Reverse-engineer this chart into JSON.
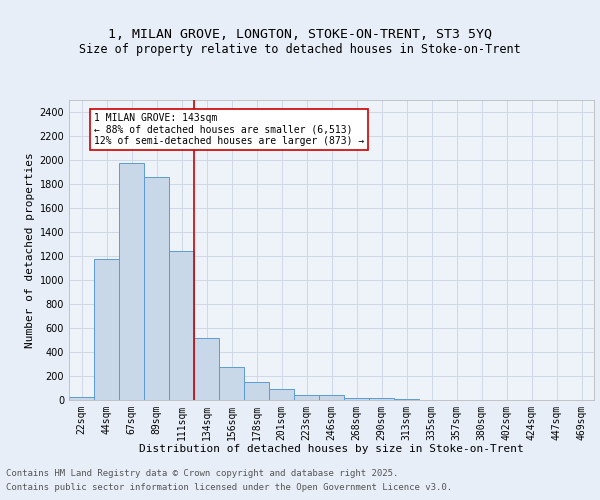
{
  "title1": "1, MILAN GROVE, LONGTON, STOKE-ON-TRENT, ST3 5YQ",
  "title2": "Size of property relative to detached houses in Stoke-on-Trent",
  "xlabel": "Distribution of detached houses by size in Stoke-on-Trent",
  "ylabel": "Number of detached properties",
  "categories": [
    "22sqm",
    "44sqm",
    "67sqm",
    "89sqm",
    "111sqm",
    "134sqm",
    "156sqm",
    "178sqm",
    "201sqm",
    "223sqm",
    "246sqm",
    "268sqm",
    "290sqm",
    "313sqm",
    "335sqm",
    "357sqm",
    "380sqm",
    "402sqm",
    "424sqm",
    "447sqm",
    "469sqm"
  ],
  "values": [
    25,
    1175,
    1975,
    1860,
    1245,
    520,
    275,
    150,
    90,
    45,
    40,
    20,
    15,
    5,
    3,
    2,
    1,
    1,
    1,
    1,
    1
  ],
  "bar_color": "#c8d8e8",
  "bar_edge_color": "#5b9bd5",
  "highlight_index": 5,
  "highlight_line_color": "#cc0000",
  "ylim": [
    0,
    2500
  ],
  "yticks": [
    0,
    200,
    400,
    600,
    800,
    1000,
    1200,
    1400,
    1600,
    1800,
    2000,
    2200,
    2400
  ],
  "annotation_text": "1 MILAN GROVE: 143sqm\n← 88% of detached houses are smaller (6,513)\n12% of semi-detached houses are larger (873) →",
  "annotation_box_color": "#ffffff",
  "annotation_box_edge": "#cc0000",
  "footer1": "Contains HM Land Registry data © Crown copyright and database right 2025.",
  "footer2": "Contains public sector information licensed under the Open Government Licence v3.0.",
  "bg_color": "#e8eef8",
  "plot_bg_color": "#eef3fa",
  "grid_color": "#d0d8e8",
  "title_fontsize": 9.5,
  "subtitle_fontsize": 8.5,
  "axis_label_fontsize": 8,
  "tick_fontsize": 7,
  "annotation_fontsize": 7,
  "footer_fontsize": 6.5
}
